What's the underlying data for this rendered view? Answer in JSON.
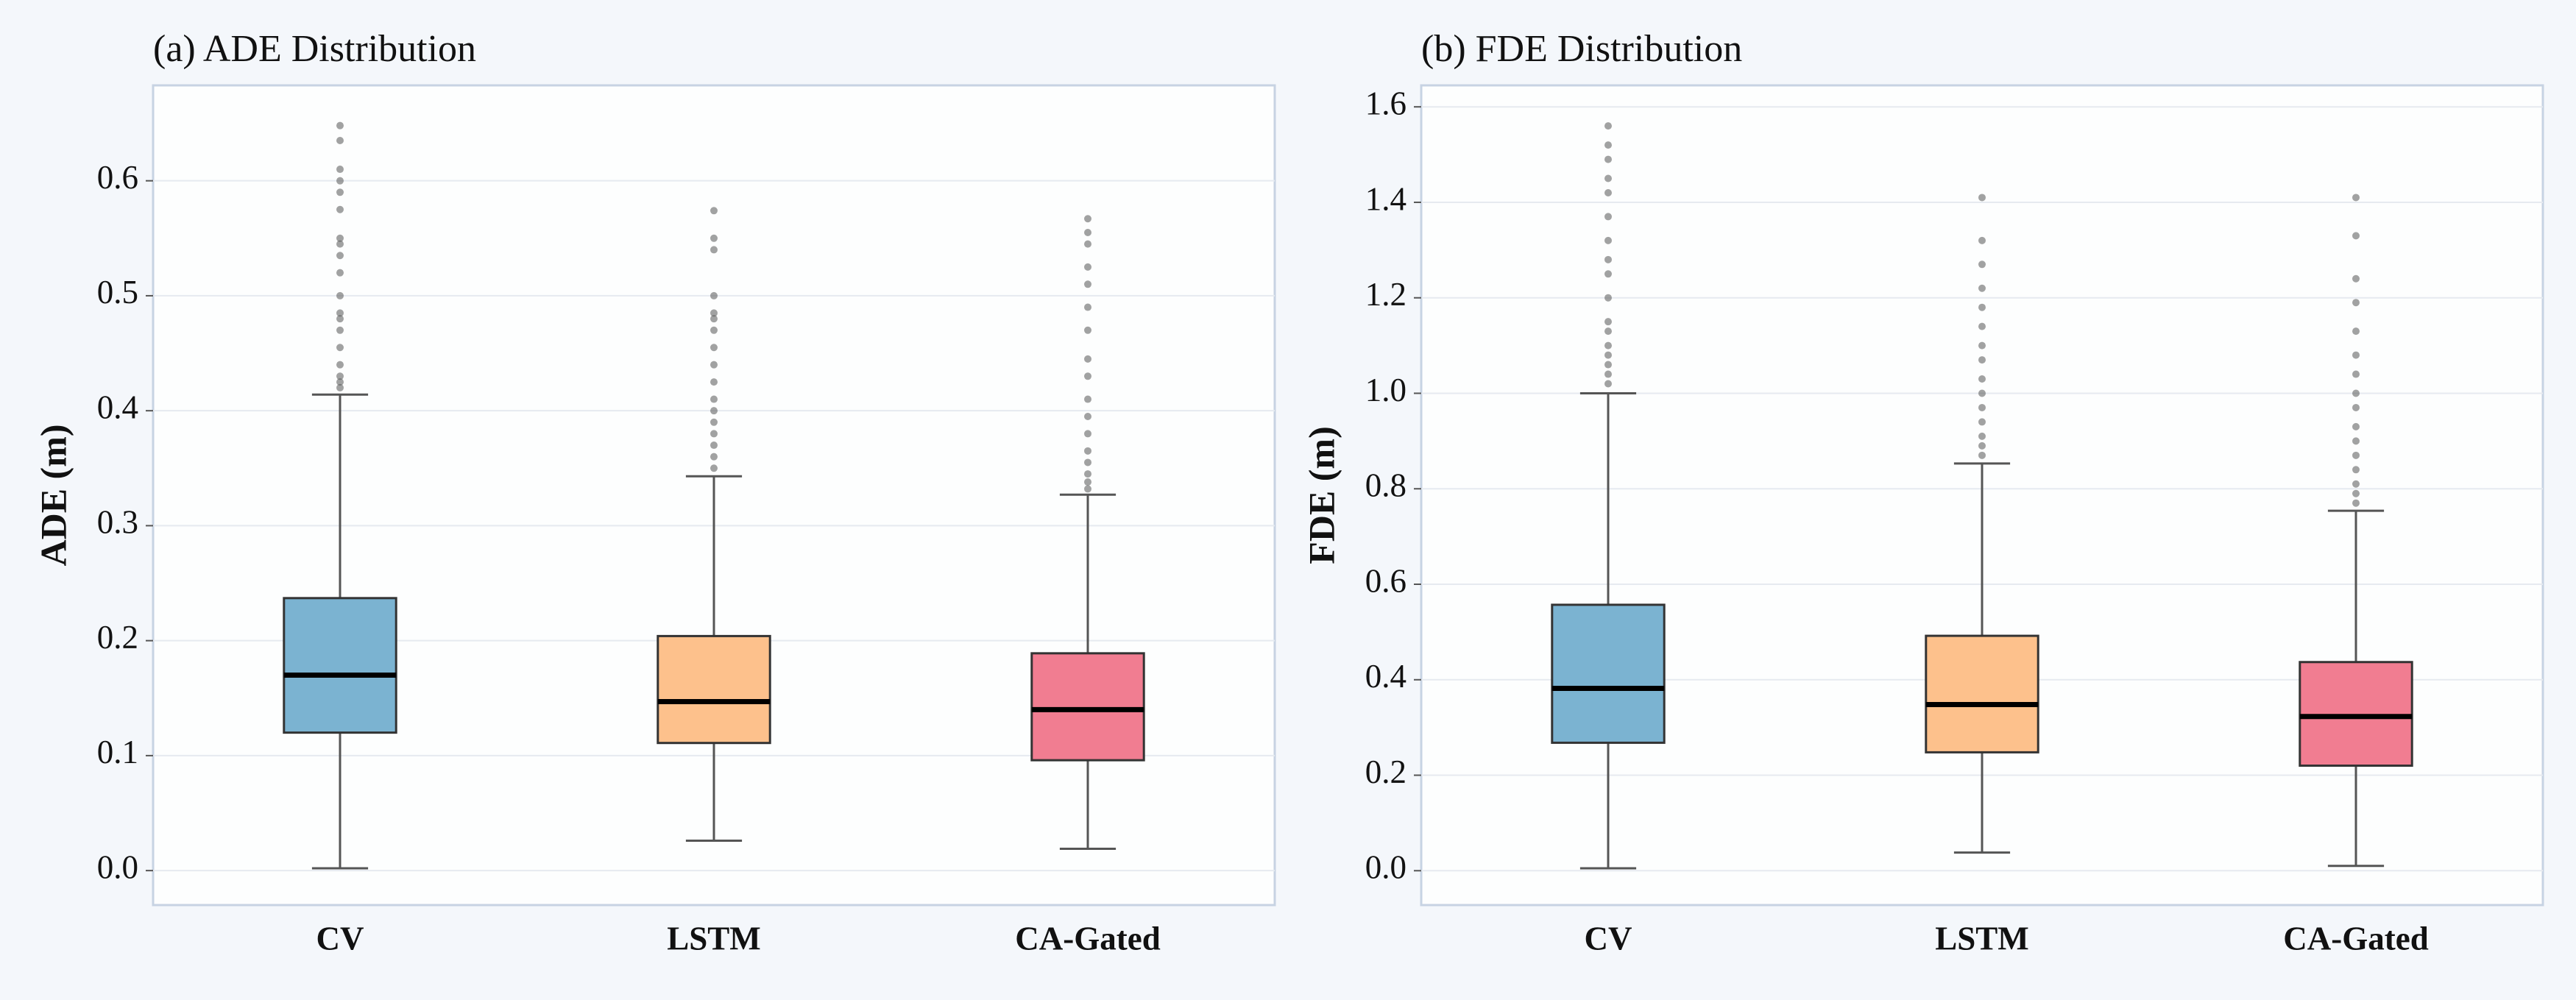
{
  "chart_data": [
    {
      "type": "box",
      "title": "(a) ADE Distribution",
      "ylabel": "ADE (m)",
      "categories": [
        "CV",
        "LSTM",
        "CA-Gated"
      ],
      "colors": [
        "#7bb3d1",
        "#fdc18c",
        "#f17d91"
      ],
      "boxes": [
        {
          "whislo": 0.002,
          "q1": 0.12,
          "med": 0.17,
          "q3": 0.237,
          "whishi": 0.414,
          "fliers": [
            0.42,
            0.425,
            0.43,
            0.44,
            0.455,
            0.47,
            0.48,
            0.485,
            0.5,
            0.52,
            0.535,
            0.545,
            0.55,
            0.575,
            0.59,
            0.6,
            0.61,
            0.635,
            0.648
          ]
        },
        {
          "whislo": 0.026,
          "q1": 0.111,
          "med": 0.147,
          "q3": 0.204,
          "whishi": 0.343,
          "fliers": [
            0.35,
            0.36,
            0.37,
            0.38,
            0.39,
            0.4,
            0.41,
            0.425,
            0.44,
            0.455,
            0.47,
            0.48,
            0.485,
            0.5,
            0.54,
            0.55,
            0.574
          ]
        },
        {
          "whislo": 0.019,
          "q1": 0.096,
          "med": 0.14,
          "q3": 0.189,
          "whishi": 0.327,
          "fliers": [
            0.332,
            0.338,
            0.345,
            0.355,
            0.365,
            0.38,
            0.395,
            0.41,
            0.43,
            0.445,
            0.47,
            0.49,
            0.51,
            0.525,
            0.545,
            0.555,
            0.567
          ]
        }
      ],
      "ylim": [
        -0.03,
        0.683
      ],
      "yticks": [
        {
          "value": 0,
          "label": "0.0"
        },
        0.1,
        0.2,
        0.3,
        0.4,
        0.5,
        0.6
      ],
      "grid": true
    },
    {
      "type": "box",
      "title": "(b) FDE Distribution",
      "ylabel": "FDE (m)",
      "categories": [
        "CV",
        "LSTM",
        "CA-Gated"
      ],
      "colors": [
        "#7bb3d1",
        "#fdc18c",
        "#f17d91"
      ],
      "boxes": [
        {
          "whislo": 0.005,
          "q1": 0.268,
          "med": 0.382,
          "q3": 0.557,
          "whishi": 1.0,
          "fliers": [
            1.02,
            1.04,
            1.06,
            1.08,
            1.1,
            1.13,
            1.15,
            1.2,
            1.25,
            1.28,
            1.32,
            1.37,
            1.42,
            1.45,
            1.49,
            1.52,
            1.56
          ]
        },
        {
          "whislo": 0.038,
          "q1": 0.248,
          "med": 0.348,
          "q3": 0.492,
          "whishi": 0.853,
          "fliers": [
            0.87,
            0.89,
            0.91,
            0.94,
            0.97,
            1.0,
            1.03,
            1.07,
            1.1,
            1.14,
            1.18,
            1.22,
            1.27,
            1.32,
            1.41
          ]
        },
        {
          "whislo": 0.01,
          "q1": 0.22,
          "med": 0.323,
          "q3": 0.437,
          "whishi": 0.754,
          "fliers": [
            0.77,
            0.79,
            0.81,
            0.84,
            0.87,
            0.9,
            0.93,
            0.97,
            1.0,
            1.04,
            1.08,
            1.13,
            1.19,
            1.24,
            1.33,
            1.41
          ]
        }
      ],
      "ylim": [
        -0.072,
        1.645
      ],
      "yticks": [
        {
          "value": 0,
          "label": "0.0"
        },
        0.2,
        0.4,
        0.6,
        0.8,
        {
          "value": 1,
          "label": "1.0"
        },
        1.2,
        1.4,
        1.6
      ],
      "grid": true
    }
  ]
}
